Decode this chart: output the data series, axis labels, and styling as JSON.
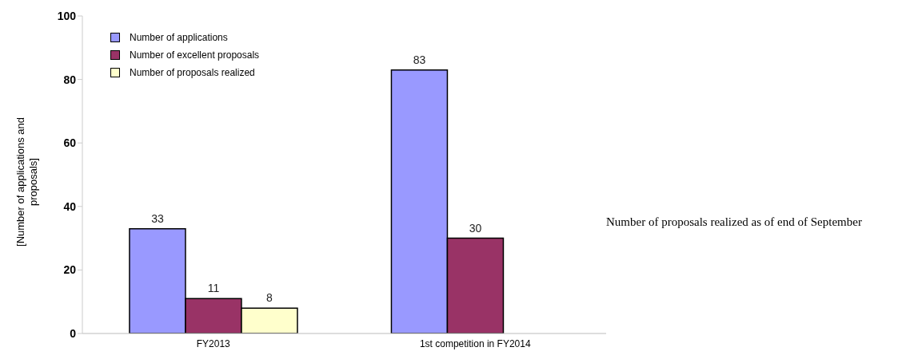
{
  "chart_data": {
    "type": "bar",
    "categories": [
      "FY2013",
      "1st competition in FY2014"
    ],
    "series": [
      {
        "name": "Number of applications",
        "color": "#9999ff",
        "values": [
          33,
          83
        ]
      },
      {
        "name": "Number of excellent proposals",
        "color": "#993366",
        "values": [
          11,
          30
        ]
      },
      {
        "name": "Number of proposals realized",
        "color": "#ffffcc",
        "values": [
          8,
          null
        ]
      }
    ],
    "ylabel": "[Number of applications and proposals]",
    "ylim": [
      0,
      100
    ],
    "yticks": [
      0,
      20,
      40,
      60,
      80,
      100
    ],
    "grid": false,
    "legend": "top left",
    "data_labels": true,
    "annotations": [
      "Number of proposals realized as of end of September"
    ]
  }
}
